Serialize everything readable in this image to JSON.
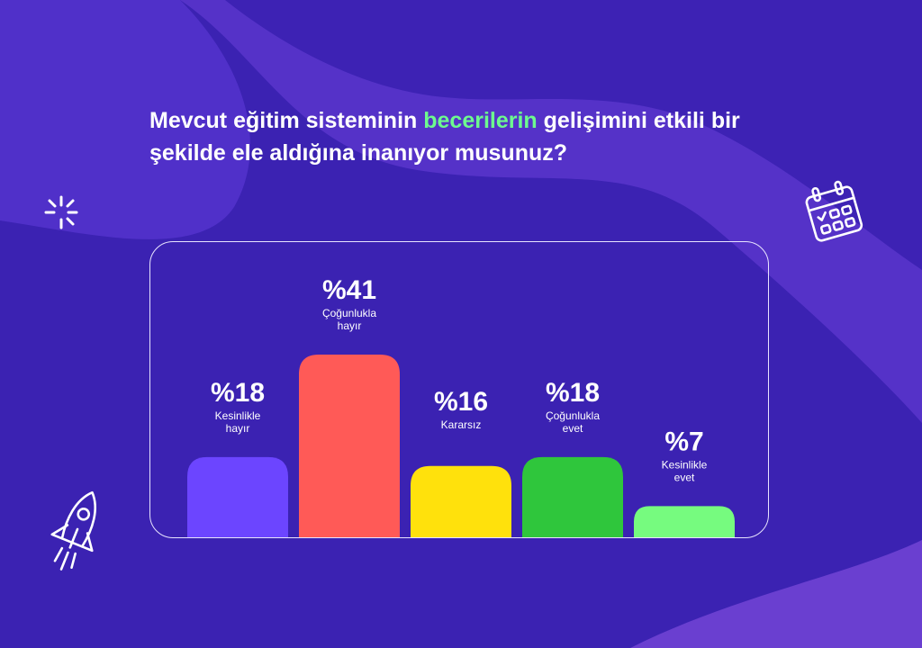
{
  "title": {
    "part1": "Mevcut eğitim sisteminin ",
    "highlight": "becerilerin",
    "part2": " gelişimini etkili bir şekilde ele aldığına inanıyor musunuz?"
  },
  "colors": {
    "background": "#3d22b4",
    "highlight": "#6dfa8e"
  },
  "icons": [
    "sparkle-icon",
    "calendar-icon",
    "rocket-icon"
  ],
  "chart_data": {
    "type": "bar",
    "title": "Mevcut eğitim sisteminin becerilerin gelişimini etkili bir şekilde ele aldığına inanıyor musunuz?",
    "categories": [
      "Kesinlikle hayır",
      "Çoğunlukla hayır",
      "Kararsız",
      "Çoğunlukla evet",
      "Kesinlikle evet"
    ],
    "label_lines": [
      [
        "Kesinlikle",
        "hayır"
      ],
      [
        "Çoğunlukla",
        "hayır"
      ],
      [
        "Kararsız"
      ],
      [
        "Çoğunlukla",
        "evet"
      ],
      [
        "Kesinlikle",
        "evet"
      ]
    ],
    "values": [
      18,
      41,
      16,
      18,
      7
    ],
    "value_labels": [
      "%18",
      "%41",
      "%16",
      "%18",
      "%7"
    ],
    "colors": [
      "#6c45ff",
      "#ff5a57",
      "#ffe10c",
      "#2fc63c",
      "#76fb7f"
    ],
    "unit": "%",
    "grid": false,
    "legend": "none"
  }
}
